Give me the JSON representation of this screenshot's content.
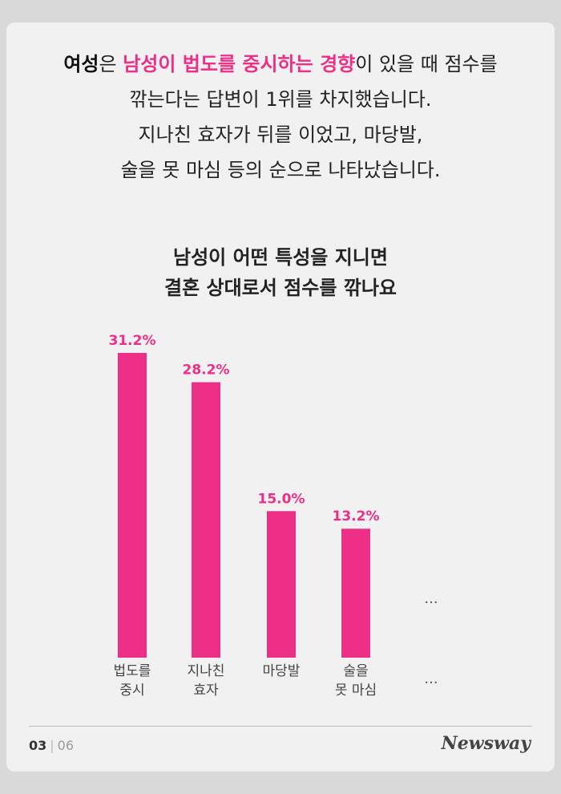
{
  "intro": {
    "line1": [
      {
        "text": "여성",
        "style": "strong"
      },
      {
        "text": "은 ",
        "style": "normal"
      },
      {
        "text": "남성이 법도를 중시하는 경향",
        "style": "pink"
      },
      {
        "text": "이 있을 때 점수를",
        "style": "normal"
      }
    ],
    "line2": "깎는다는 답변이 1위를 차지했습니다.",
    "line3": "지나친 효자가 뒤를 이었고, 마당발,",
    "line4": "술을 못 마심 등의 순으로 나타났습니다."
  },
  "chart_data": {
    "type": "bar",
    "title": [
      "남성이 어떤 특성을 지니면",
      "결혼 상대로서 점수를 깎나요"
    ],
    "categories": [
      [
        "법도를",
        "중시"
      ],
      [
        "지나친",
        "효자"
      ],
      [
        "마당발"
      ],
      [
        "술을",
        "못 마심"
      ]
    ],
    "values": [
      31.2,
      28.2,
      15.0,
      13.2
    ],
    "value_labels": [
      "31.2%",
      "28.2%",
      "15.0%",
      "13.2%"
    ],
    "extra_category": "...",
    "ylim": [
      0,
      31.2
    ],
    "grid": false,
    "legend": "none"
  },
  "colors": {
    "accent": "#ee2f87",
    "text": "#222222",
    "background": "#f1f1f1"
  },
  "footer": {
    "current_page": "03",
    "total_pages": "06",
    "brand": "Newsway"
  }
}
